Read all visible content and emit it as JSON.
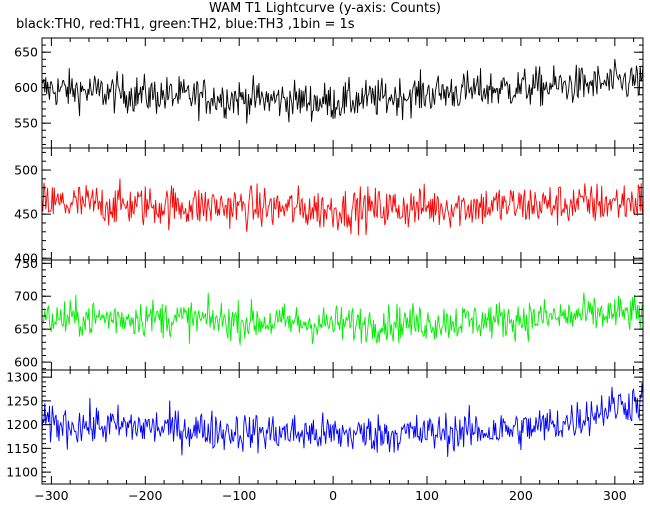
{
  "chart_data": {
    "type": "line",
    "title": "WAM T1 Lightcurve (y-axis: Counts)",
    "subtitle": "black:TH0, red:TH1, green:TH2, blue:TH3 ,1bin = 1s",
    "xlim": [
      -310,
      330
    ],
    "xticks": [
      -300,
      -200,
      -100,
      0,
      100,
      200,
      300
    ],
    "x_step": 1,
    "panels": [
      {
        "color": "#000000",
        "ylim": [
          515,
          670
        ],
        "yticks": [
          550,
          600,
          650
        ],
        "approx_mean": [
          598,
          590,
          585,
          580,
          585,
          592,
          600,
          605,
          610
        ],
        "approx_mean_x": [
          -300,
          -200,
          -100,
          0,
          50,
          100,
          200,
          280,
          330
        ],
        "noise_amplitude": 25
      },
      {
        "color": "#ff0000",
        "ylim": [
          398,
          525
        ],
        "yticks": [
          400,
          450,
          500
        ],
        "approx_mean": [
          462,
          460,
          458,
          455,
          458,
          460,
          462,
          465
        ],
        "approx_mean_x": [
          -300,
          -200,
          -100,
          0,
          100,
          200,
          280,
          330
        ],
        "noise_amplitude": 22
      },
      {
        "color": "#00ee00",
        "ylim": [
          588,
          755
        ],
        "yticks": [
          600,
          650,
          700,
          750
        ],
        "approx_mean": [
          665,
          668,
          662,
          658,
          660,
          665,
          672,
          675
        ],
        "approx_mean_x": [
          -300,
          -200,
          -100,
          0,
          100,
          200,
          280,
          330
        ],
        "noise_amplitude": 26
      },
      {
        "color": "#0000ff",
        "ylim": [
          1075,
          1315
        ],
        "yticks": [
          1100,
          1150,
          1200,
          1250,
          1300
        ],
        "approx_mean": [
          1200,
          1195,
          1185,
          1180,
          1182,
          1190,
          1205,
          1240,
          1250
        ],
        "approx_mean_x": [
          -300,
          -200,
          -100,
          0,
          100,
          200,
          250,
          300,
          330
        ],
        "noise_amplitude": 38
      }
    ]
  }
}
